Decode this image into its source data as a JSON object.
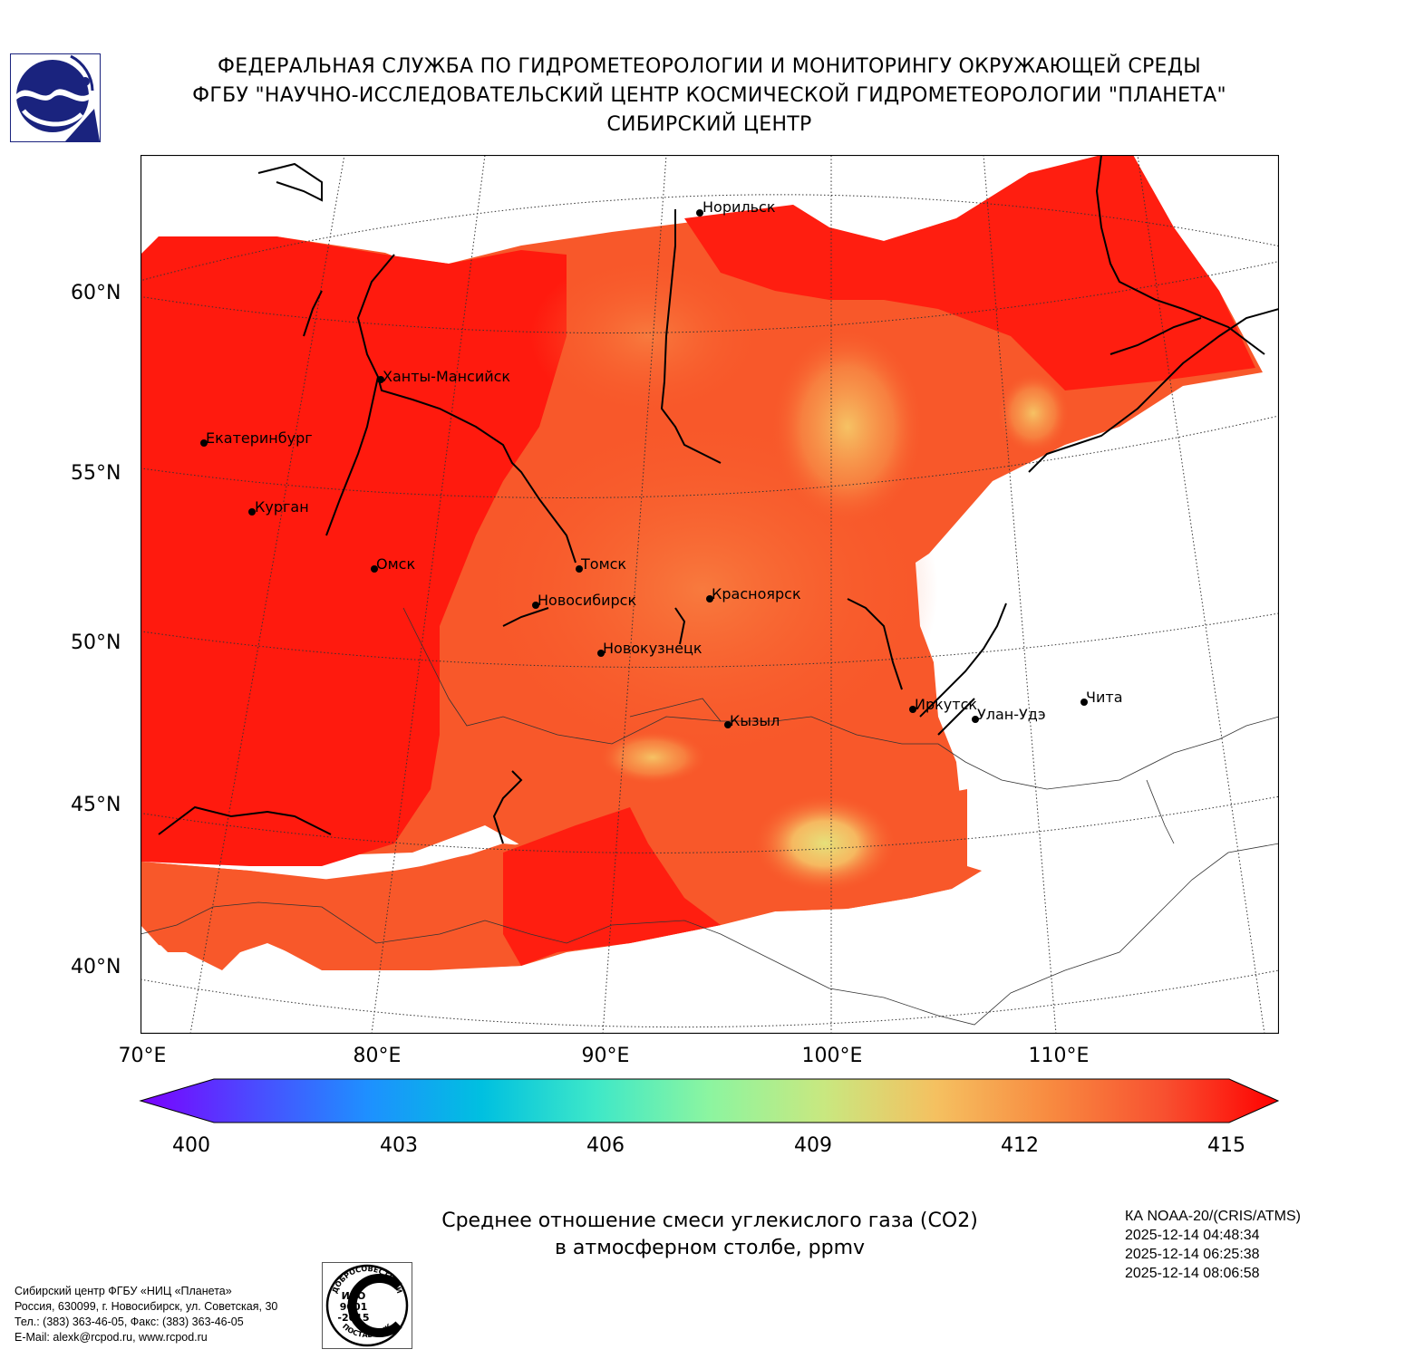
{
  "header": {
    "line1": "ФЕДЕРАЛЬНАЯ СЛУЖБА ПО ГИДРОМЕТЕОРОЛОГИИ И МОНИТОРИНГУ ОКРУЖАЮЩЕЙ СРЕДЫ",
    "line2": "ФГБУ \"НАУЧНО-ИССЛЕДОВАТЕЛЬСКИЙ ЦЕНТР КОСМИЧЕСКОЙ ГИДРОМЕТЕОРОЛОГИИ \"ПЛАНЕТА\"",
    "line3": "СИБИРСКИЙ ЦЕНТР"
  },
  "map": {
    "lat_labels": [
      "60°N",
      "55°N",
      "50°N",
      "45°N",
      "40°N"
    ],
    "lon_labels": [
      "70°E",
      "80°E",
      "90°E",
      "100°E",
      "110°E"
    ],
    "cities": [
      {
        "name": "Норильск"
      },
      {
        "name": "Ханты-Мансийск"
      },
      {
        "name": "Екатеринбург"
      },
      {
        "name": "Курган"
      },
      {
        "name": "Омск"
      },
      {
        "name": "Томск"
      },
      {
        "name": "Новосибирск"
      },
      {
        "name": "Красноярск"
      },
      {
        "name": "Новокузнецк"
      },
      {
        "name": "Иркутск"
      },
      {
        "name": "Улан-Удэ"
      },
      {
        "name": "Чита"
      },
      {
        "name": "Кызыл"
      }
    ],
    "field_color_high": "#ff1a0e",
    "field_color_mid": "#f8582a",
    "field_color_low": "#f5b65e"
  },
  "colorbar": {
    "ticks": [
      "400",
      "403",
      "406",
      "409",
      "412",
      "415"
    ],
    "min": 400,
    "max": 415,
    "colors": [
      "#7b00ff",
      "#4b4bff",
      "#1e90ff",
      "#00c0e0",
      "#3ee8c8",
      "#8cf5a0",
      "#c8e880",
      "#f5c060",
      "#f88a40",
      "#f85030",
      "#ff0000"
    ]
  },
  "caption": {
    "line1": "Среднее отношение смеси углекислого газа (CO2)",
    "line2": "в атмосферном столбе, ppmv"
  },
  "satellite": {
    "name": "КА NOAA-20/(CRIS/ATMS)",
    "time1": "2025-12-14 04:48:34",
    "time2": "2025-12-14 06:25:38",
    "time3": "2025-12-14 08:06:58"
  },
  "footer": {
    "line1": "Сибирский центр ФГБУ «НИЦ «Планета»",
    "line2": "Россия, 630099, г. Новосибирск, ул. Советская, 30",
    "line3": "Тел.: (383) 363-46-05, Факс: (383) 363-46-05",
    "line4": "E-Mail: alexk@rcpod.ru, www.rcpod.ru"
  },
  "iso_badge": {
    "top_text": "ДОБРОСОВЕСТНЫЙ",
    "line1": "ИСО",
    "line2": "9001",
    "line3": "-2015",
    "bottom_text": "ПОСТАВЩИК"
  }
}
